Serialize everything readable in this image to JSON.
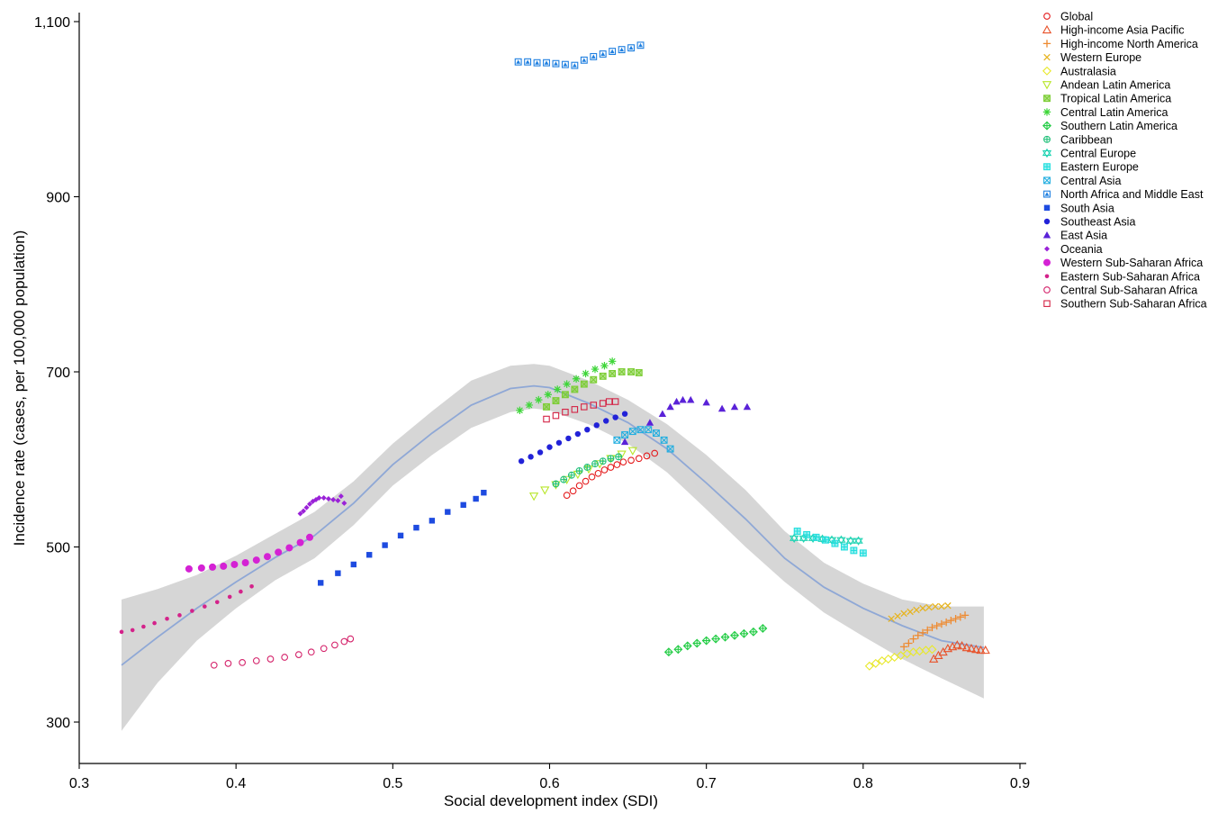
{
  "chart_data": {
    "type": "scatter",
    "title": "",
    "xlabel": "Social development index (SDI)",
    "ylabel": "Incidence rate (cases, per 100,000 population)",
    "xlim": [
      0.3,
      0.9
    ],
    "ylim": [
      250,
      1110
    ],
    "xticks": [
      0.3,
      0.4,
      0.5,
      0.6,
      0.7,
      0.8,
      0.9
    ],
    "xtick_labels": [
      "0.3",
      "0.4",
      "0.5",
      "0.6",
      "0.7",
      "0.8",
      "0.9"
    ],
    "yticks": [
      300,
      500,
      700,
      900,
      1100
    ],
    "ytick_labels": [
      "300",
      "500",
      "700",
      "900",
      "1,100"
    ],
    "grid": false,
    "legend_position": "top-right",
    "smooth_fit": {
      "color": "#8fa8d6",
      "band_color": "#d6d6d6",
      "x": [
        0.327,
        0.35,
        0.375,
        0.4,
        0.425,
        0.45,
        0.475,
        0.5,
        0.525,
        0.55,
        0.575,
        0.59,
        0.6,
        0.625,
        0.65,
        0.675,
        0.7,
        0.725,
        0.75,
        0.775,
        0.8,
        0.825,
        0.85,
        0.877
      ],
      "y": [
        365,
        397,
        430,
        460,
        488,
        513,
        550,
        594,
        630,
        662,
        681,
        684,
        682,
        664,
        642,
        612,
        573,
        532,
        487,
        454,
        430,
        410,
        393,
        385
      ],
      "lower": [
        290,
        345,
        393,
        430,
        462,
        487,
        525,
        570,
        605,
        636,
        654,
        658,
        656,
        640,
        618,
        585,
        543,
        500,
        460,
        425,
        398,
        372,
        350,
        327
      ],
      "upper": [
        440,
        452,
        468,
        490,
        515,
        540,
        575,
        618,
        655,
        690,
        707,
        709,
        707,
        690,
        668,
        640,
        605,
        565,
        518,
        482,
        458,
        440,
        432,
        432
      ]
    },
    "series": [
      {
        "name": "Global",
        "marker": "circle-open",
        "color": "#e41a1c",
        "x": [
          0.611,
          0.615,
          0.619,
          0.623,
          0.627,
          0.631,
          0.635,
          0.639,
          0.643,
          0.647,
          0.652,
          0.657,
          0.662,
          0.667
        ],
        "y": [
          559,
          564,
          570,
          575,
          580,
          584,
          588,
          591,
          594,
          597,
          599,
          601,
          604,
          607
        ]
      },
      {
        "name": "High-income Asia Pacific",
        "marker": "triangle-open",
        "color": "#e8522a",
        "x": [
          0.845,
          0.848,
          0.851,
          0.854,
          0.857,
          0.86,
          0.863,
          0.866,
          0.869,
          0.872,
          0.875,
          0.878
        ],
        "y": [
          372,
          376,
          380,
          384,
          386,
          388,
          387,
          385,
          384,
          383,
          382,
          382
        ]
      },
      {
        "name": "High-income North America",
        "marker": "plus",
        "color": "#ee8a30",
        "x": [
          0.826,
          0.829,
          0.832,
          0.835,
          0.838,
          0.841,
          0.844,
          0.847,
          0.85,
          0.853,
          0.856,
          0.859,
          0.862,
          0.865
        ],
        "y": [
          386,
          390,
          395,
          399,
          402,
          405,
          408,
          410,
          412,
          414,
          416,
          418,
          420,
          422
        ]
      },
      {
        "name": "Western Europe",
        "marker": "x",
        "color": "#e6b422",
        "x": [
          0.818,
          0.822,
          0.826,
          0.83,
          0.834,
          0.838,
          0.842,
          0.846,
          0.85,
          0.854
        ],
        "y": [
          418,
          421,
          424,
          426,
          428,
          430,
          431,
          432,
          432,
          433
        ]
      },
      {
        "name": "Australasia",
        "marker": "diamond-open",
        "color": "#e8e82a",
        "x": [
          0.804,
          0.808,
          0.812,
          0.816,
          0.82,
          0.824,
          0.828,
          0.832,
          0.836,
          0.84,
          0.844
        ],
        "y": [
          364,
          367,
          370,
          372,
          374,
          376,
          378,
          380,
          381,
          382,
          383
        ]
      },
      {
        "name": "Andean Latin America",
        "marker": "triangle-down-open",
        "color": "#b8e62a",
        "x": [
          0.59,
          0.597,
          0.604,
          0.611,
          0.618,
          0.625,
          0.632,
          0.639,
          0.646,
          0.653
        ],
        "y": [
          558,
          565,
          571,
          577,
          583,
          589,
          595,
          601,
          606,
          610
        ]
      },
      {
        "name": "Tropical Latin America",
        "marker": "square-x",
        "color": "#7ccd34",
        "x": [
          0.598,
          0.604,
          0.61,
          0.616,
          0.622,
          0.628,
          0.634,
          0.64,
          0.646,
          0.652,
          0.657
        ],
        "y": [
          660,
          667,
          674,
          680,
          686,
          691,
          695,
          698,
          700,
          700,
          699
        ]
      },
      {
        "name": "Central Latin America",
        "marker": "asterisk",
        "color": "#3ed639",
        "x": [
          0.581,
          0.587,
          0.593,
          0.599,
          0.605,
          0.611,
          0.617,
          0.623,
          0.629,
          0.635,
          0.64
        ],
        "y": [
          656,
          662,
          668,
          674,
          680,
          686,
          692,
          698,
          703,
          707,
          712
        ]
      },
      {
        "name": "Southern Latin America",
        "marker": "diamond-plus",
        "color": "#22cc44",
        "x": [
          0.676,
          0.682,
          0.688,
          0.694,
          0.7,
          0.706,
          0.712,
          0.718,
          0.724,
          0.73,
          0.736
        ],
        "y": [
          380,
          383,
          387,
          390,
          393,
          395,
          397,
          399,
          401,
          403,
          407
        ]
      },
      {
        "name": "Caribbean",
        "marker": "circle-plus",
        "color": "#22c07a",
        "x": [
          0.604,
          0.609,
          0.614,
          0.619,
          0.624,
          0.629,
          0.634,
          0.639,
          0.644
        ],
        "y": [
          572,
          577,
          582,
          587,
          591,
          595,
          598,
          601,
          603
        ]
      },
      {
        "name": "Central Europe",
        "marker": "star-of-david",
        "color": "#22d4b4",
        "x": [
          0.756,
          0.762,
          0.768,
          0.774,
          0.78,
          0.786,
          0.792,
          0.797
        ],
        "y": [
          510,
          510,
          510,
          509,
          508,
          508,
          507,
          507
        ]
      },
      {
        "name": "Eastern Europe",
        "marker": "square-plus",
        "color": "#22dede",
        "x": [
          0.758,
          0.764,
          0.77,
          0.776,
          0.782,
          0.788,
          0.794,
          0.8
        ],
        "y": [
          518,
          514,
          511,
          508,
          504,
          500,
          496,
          493
        ]
      },
      {
        "name": "Central Asia",
        "marker": "square-x-open",
        "color": "#22aee0",
        "x": [
          0.643,
          0.648,
          0.653,
          0.658,
          0.663,
          0.668,
          0.673,
          0.677
        ],
        "y": [
          622,
          628,
          632,
          634,
          634,
          630,
          622,
          612
        ]
      },
      {
        "name": "North Africa and Middle East",
        "marker": "square-triangle",
        "color": "#1e7fe0",
        "x": [
          0.58,
          0.586,
          0.592,
          0.598,
          0.604,
          0.61,
          0.616,
          0.622,
          0.628,
          0.634,
          0.64,
          0.646,
          0.652,
          0.658
        ],
        "y": [
          1054,
          1054,
          1053,
          1053,
          1052,
          1051,
          1050,
          1056,
          1060,
          1063,
          1066,
          1068,
          1070,
          1073
        ]
      },
      {
        "name": "South Asia",
        "marker": "square",
        "color": "#1e4be0",
        "x": [
          0.454,
          0.465,
          0.475,
          0.485,
          0.495,
          0.505,
          0.515,
          0.525,
          0.535,
          0.545,
          0.553,
          0.558
        ],
        "y": [
          459,
          470,
          480,
          491,
          502,
          513,
          522,
          530,
          540,
          548,
          555,
          562
        ]
      },
      {
        "name": "Southeast Asia",
        "marker": "circle",
        "color": "#2222d8",
        "x": [
          0.582,
          0.588,
          0.594,
          0.6,
          0.606,
          0.612,
          0.618,
          0.624,
          0.63,
          0.636,
          0.642,
          0.648
        ],
        "y": [
          598,
          603,
          608,
          614,
          619,
          624,
          629,
          634,
          639,
          644,
          648,
          652
        ]
      },
      {
        "name": "East Asia",
        "marker": "triangle",
        "color": "#5a22d8",
        "x": [
          0.648,
          0.664,
          0.672,
          0.677,
          0.681,
          0.685,
          0.69,
          0.7,
          0.71,
          0.718,
          0.726
        ],
        "y": [
          620,
          642,
          652,
          660,
          666,
          668,
          668,
          665,
          658,
          660,
          660
        ]
      },
      {
        "name": "Oceania",
        "marker": "diamond",
        "color": "#9a22d8",
        "x": [
          0.441,
          0.443,
          0.445,
          0.447,
          0.449,
          0.451,
          0.453,
          0.456,
          0.459,
          0.462,
          0.465,
          0.467,
          0.469
        ],
        "y": [
          538,
          541,
          545,
          549,
          552,
          554,
          556,
          556,
          555,
          554,
          553,
          558,
          550
        ]
      },
      {
        "name": "Western Sub-Saharan Africa",
        "marker": "circle-large",
        "color": "#d422d4",
        "x": [
          0.37,
          0.378,
          0.385,
          0.392,
          0.399,
          0.406,
          0.413,
          0.42,
          0.427,
          0.434,
          0.441,
          0.447
        ],
        "y": [
          475,
          476,
          477,
          478,
          480,
          482,
          485,
          489,
          494,
          499,
          505,
          511
        ]
      },
      {
        "name": "Eastern Sub-Saharan Africa",
        "marker": "circle-small",
        "color": "#d4228a",
        "x": [
          0.327,
          0.334,
          0.341,
          0.348,
          0.356,
          0.364,
          0.372,
          0.38,
          0.388,
          0.396,
          0.403,
          0.41
        ],
        "y": [
          403,
          405,
          409,
          413,
          418,
          422,
          427,
          432,
          437,
          443,
          449,
          455
        ]
      },
      {
        "name": "Central Sub-Saharan Africa",
        "marker": "circle-open",
        "color": "#d4226a",
        "x": [
          0.386,
          0.395,
          0.404,
          0.413,
          0.422,
          0.431,
          0.44,
          0.448,
          0.456,
          0.463,
          0.469,
          0.473
        ],
        "y": [
          365,
          367,
          368,
          370,
          372,
          374,
          377,
          380,
          384,
          388,
          392,
          395
        ]
      },
      {
        "name": "Southern Sub-Saharan Africa",
        "marker": "square-open",
        "color": "#d42244",
        "x": [
          0.598,
          0.604,
          0.61,
          0.616,
          0.622,
          0.628,
          0.634,
          0.638,
          0.642
        ],
        "y": [
          646,
          650,
          654,
          657,
          660,
          662,
          664,
          666,
          666
        ]
      }
    ]
  }
}
